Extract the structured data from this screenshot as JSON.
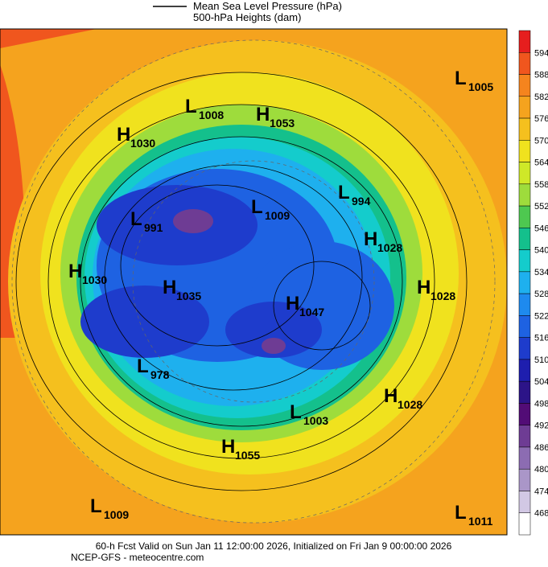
{
  "header": {
    "legend": [
      "Mean Sea Level Pressure (hPa)",
      "500-hPa Heights (dam)"
    ]
  },
  "colorbar": {
    "levels": [
      594,
      588,
      582,
      576,
      570,
      564,
      558,
      552,
      546,
      540,
      534,
      528,
      522,
      516,
      510,
      504,
      498,
      492,
      486,
      480,
      474,
      468
    ],
    "colors": [
      "#e61e1e",
      "#f0561e",
      "#f5841e",
      "#f5a31e",
      "#f5c01e",
      "#f0e21e",
      "#cfe828",
      "#9edc3c",
      "#4ec850",
      "#14c08c",
      "#14cccc",
      "#1eb0ee",
      "#1e8aee",
      "#1e62e2",
      "#1e3ccc",
      "#1e1eae",
      "#2c1488",
      "#520c76",
      "#6e3c94",
      "#8c6cb2",
      "#aa96c8",
      "#d2c8e4",
      "#ffffff"
    ]
  },
  "centers": [
    {
      "type": "L",
      "value": "1005"
    },
    {
      "type": "L",
      "value": "1008"
    },
    {
      "type": "H",
      "value": "1053"
    },
    {
      "type": "H",
      "value": "1030"
    },
    {
      "type": "L",
      "value": "994"
    },
    {
      "type": "L",
      "value": "991"
    },
    {
      "type": "L",
      "value": "1009"
    },
    {
      "type": "H",
      "value": "1028"
    },
    {
      "type": "H",
      "value": "1030"
    },
    {
      "type": "H",
      "value": "1035"
    },
    {
      "type": "H",
      "value": "1028"
    },
    {
      "type": "H",
      "value": "1047"
    },
    {
      "type": "L",
      "value": "978"
    },
    {
      "type": "H",
      "value": "1028"
    },
    {
      "type": "L",
      "value": "1003"
    },
    {
      "type": "H",
      "value": "1055"
    },
    {
      "type": "L",
      "value": "1009"
    },
    {
      "type": "L",
      "value": "1011"
    }
  ],
  "footer": [
    "60-h Fcst Valid on Sun Jan 11 12:00:00 2026, Initialized on Fri Jan  9 00:00:00 2026",
    "NCEP-GFS - meteocentre.com"
  ]
}
